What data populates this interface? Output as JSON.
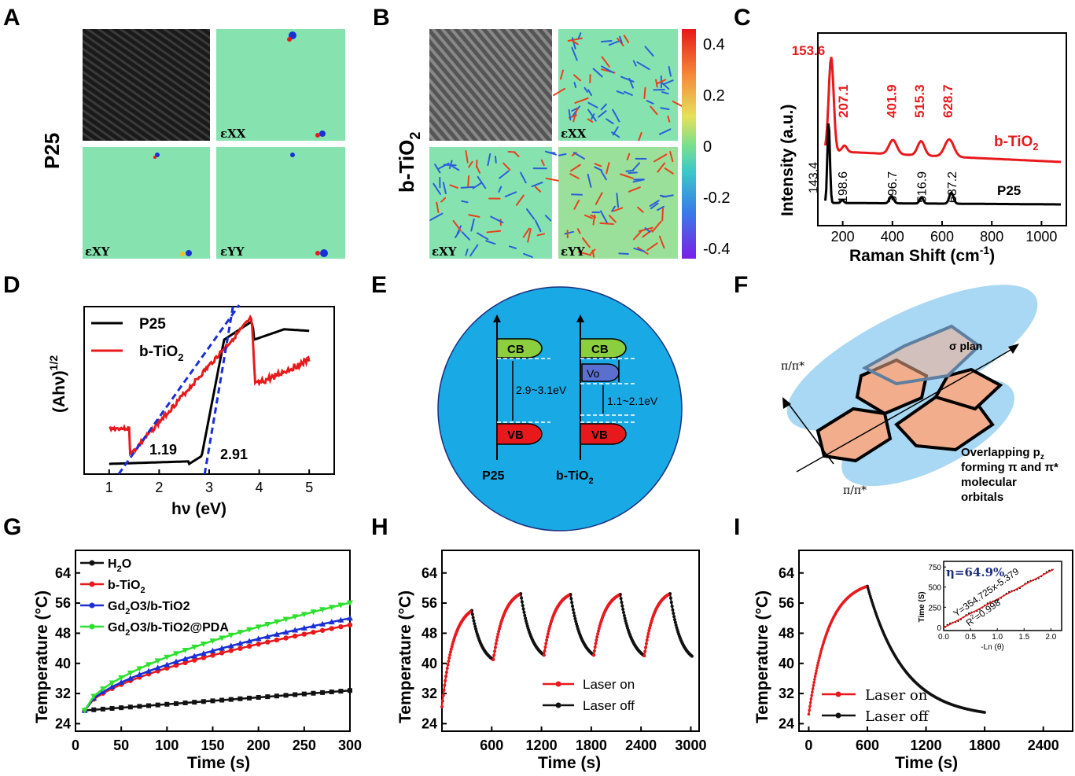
{
  "panel_letters": {
    "A": "A",
    "B": "B",
    "C": "C",
    "D": "D",
    "E": "E",
    "F": "F",
    "G": "G",
    "H": "H",
    "I": "I"
  },
  "panel_a": {
    "sample": "P25",
    "labels": [
      "εXX",
      "εXY",
      "εYY"
    ]
  },
  "panel_b": {
    "sample": "b-TiO",
    "sample_sub": "2",
    "labels": [
      "εXX",
      "εXY",
      "εYY"
    ],
    "colorbar": {
      "ticks": [
        "0.4",
        "0.2",
        "0",
        "-0.2",
        "-0.4"
      ],
      "min": -0.4,
      "max": 0.4
    }
  },
  "chart_c": {
    "type": "line",
    "xlabel": "Raman Shift (cm",
    "xlabel_sup": "-1",
    "xlabel_end": ")",
    "ylabel": "Intensity (a.u.)",
    "xlim": [
      100,
      1100
    ],
    "xticks": [
      "200",
      "400",
      "600",
      "800",
      "1000"
    ],
    "series": [
      {
        "name": "b-TiO",
        "name_sub": "2",
        "color": "#e8191c",
        "peaks": [
          "153.6",
          "207.1",
          "401.9",
          "515.3",
          "628.7"
        ]
      },
      {
        "name": "P25",
        "color": "#000000",
        "peaks": [
          "143.4",
          "198.6",
          "396.7",
          "516.9",
          "637.2"
        ]
      }
    ]
  },
  "chart_d": {
    "type": "line",
    "xlabel": "hν (eV)",
    "ylabel": "(Ahν)",
    "ylabel_sup": "1/2",
    "xlim": [
      0.5,
      5.5
    ],
    "xticks": [
      "1",
      "2",
      "3",
      "4",
      "5"
    ],
    "legend": [
      {
        "name": "P25",
        "color": "#000000"
      },
      {
        "name": "b-TiO",
        "sub": "2",
        "color": "#e8191c"
      }
    ],
    "annotations": [
      "1.19",
      "2.91"
    ],
    "fit_lines_color": "#1a2fd4"
  },
  "diagram_e": {
    "p25": {
      "cb": "CB",
      "vb": "VB",
      "gap": "2.9~3.1eV",
      "label": "P25"
    },
    "btio2": {
      "cb": "CB",
      "vo": "Vo",
      "vb": "VB",
      "gap": "1.1~2.1eV",
      "label": "b-TiO",
      "label_sub": "2"
    },
    "bg_color": "#19a9e4"
  },
  "diagram_f": {
    "sigma": "σ plan",
    "pi_top": "π/π*",
    "pi_bottom": "π/π*",
    "overlap_lines": [
      "Overlapping p",
      "forming π and π*",
      "molecular",
      "orbitals"
    ],
    "overlap_sub": "z"
  },
  "chart_g": {
    "type": "line",
    "xlabel": "Time (s)",
    "ylabel": "Temperature (°C)",
    "xlim": [
      0,
      300
    ],
    "ylim": [
      22,
      70
    ],
    "xticks": [
      "0",
      "50",
      "100",
      "150",
      "200",
      "250",
      "300"
    ],
    "yticks": [
      "24",
      "32",
      "40",
      "48",
      "56",
      "64"
    ],
    "x": [
      10,
      300
    ],
    "series": [
      {
        "name": "H2O",
        "label": "H",
        "label_sub": "2",
        "label_end": "O",
        "color": "#111111",
        "start": 27.5,
        "end": 32.8
      },
      {
        "name": "b-TiO2",
        "label": "b-TiO",
        "label_sub": "2",
        "label_end": "",
        "color": "#e8191c",
        "start": 27.5,
        "end": 50.2
      },
      {
        "name": "Gd2O3/b-TiO2",
        "label": "Gd",
        "label_sub": "2",
        "label_end": "O3/b-TiO2",
        "color": "#1a2fd4",
        "start": 27.5,
        "end": 52.0
      },
      {
        "name": "Gd2O3/b-TiO2@PDA",
        "label": "Gd",
        "label_sub": "2",
        "label_end": "O3/b-TiO2@PDA",
        "color": "#2ee02e",
        "start": 27.5,
        "end": 56.1
      }
    ]
  },
  "chart_h": {
    "type": "line",
    "xlabel": "Time (s)",
    "ylabel": "Temperature (°C)",
    "xlim": [
      0,
      3100
    ],
    "ylim": [
      22,
      70
    ],
    "xticks": [
      "600",
      "1200",
      "1800",
      "2400",
      "3000"
    ],
    "yticks": [
      "24",
      "32",
      "40",
      "48",
      "56",
      "64"
    ],
    "cycles": [
      {
        "on_start": 0,
        "on_end": 360,
        "t_low": 28.5,
        "t_high": 54.0,
        "off_end": 620,
        "t_off": 41.0
      },
      {
        "on_start": 620,
        "on_end": 950,
        "t_low": 41.0,
        "t_high": 58.5,
        "off_end": 1230,
        "t_off": 42.2
      },
      {
        "on_start": 1230,
        "on_end": 1550,
        "t_low": 42.2,
        "t_high": 58.3,
        "off_end": 1830,
        "t_off": 42.2
      },
      {
        "on_start": 1830,
        "on_end": 2150,
        "t_low": 42.2,
        "t_high": 58.3,
        "off_end": 2440,
        "t_off": 42.0
      },
      {
        "on_start": 2440,
        "on_end": 2750,
        "t_low": 42.0,
        "t_high": 58.5,
        "off_end": 3020,
        "t_off": 41.8
      }
    ],
    "legend": [
      {
        "name": "Laser on",
        "color": "#e8191c"
      },
      {
        "name": "Laser off",
        "color": "#111111"
      }
    ]
  },
  "chart_i": {
    "type": "line",
    "xlabel": "Time (s)",
    "ylabel": "Temperature (°C)",
    "xlim": [
      -100,
      2700
    ],
    "ylim": [
      22,
      70
    ],
    "xticks": [
      "0",
      "600",
      "1200",
      "1800",
      "2400"
    ],
    "yticks": [
      "24",
      "32",
      "40",
      "48",
      "56",
      "64"
    ],
    "heating": {
      "start": 0,
      "end": 600,
      "t0": 26.5,
      "t1": 60.5
    },
    "cooling": {
      "start": 600,
      "end": 1800,
      "t0": 60.5,
      "t_end": 27.0
    },
    "legend": [
      {
        "name": "Laser on",
        "color": "#e8191c"
      },
      {
        "name": "Laser off",
        "color": "#111111"
      }
    ],
    "inset": {
      "eta": "η=64.9%",
      "equation": "Y=354.725x-5.379",
      "r2": "R",
      "r2_sup": "2",
      "r2_end": "=0.998",
      "xlabel": "-Ln (θ)",
      "ylabel": "Time (S)",
      "xticks": [
        "0.0",
        "0.5",
        "1.0",
        "1.5",
        "2.0"
      ],
      "yticks": [
        "0",
        "250",
        "500",
        "750"
      ],
      "xlim": [
        0,
        2.2
      ],
      "ylim": [
        -40,
        820
      ],
      "slope": 354.725,
      "intercept": -5.379
    }
  }
}
